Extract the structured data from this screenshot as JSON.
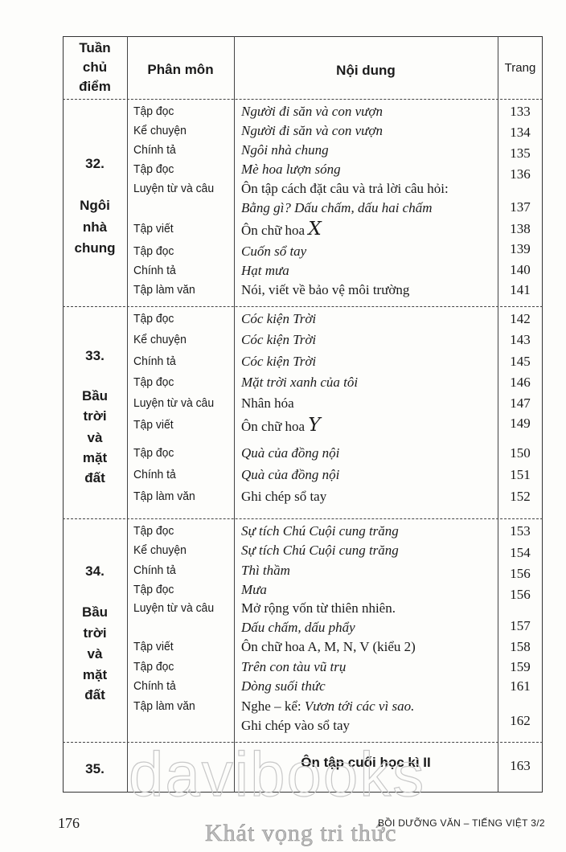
{
  "header": {
    "week": [
      "Tuần",
      "chủ",
      "điểm"
    ],
    "subject": "Phân môn",
    "content": "Nội dung",
    "page": "Trang"
  },
  "sections": [
    {
      "week_lines": [
        "32.",
        "Ngôi",
        "nhà",
        "chung"
      ],
      "rows": [
        {
          "subject": "Tập đọc",
          "content": [
            [
              {
                "t": "Người đi săn và con vượn",
                "i": true
              }
            ]
          ],
          "page": "133"
        },
        {
          "subject": "Kể chuyện",
          "content": [
            [
              {
                "t": "Người đi săn và con vượn",
                "i": true
              }
            ]
          ],
          "page": "134"
        },
        {
          "subject": "Chính tả",
          "content": [
            [
              {
                "t": "Ngôi nhà chung",
                "i": true
              }
            ]
          ],
          "page": "135"
        },
        {
          "subject": "Tập đọc",
          "content": [
            [
              {
                "t": "Mè hoa lượn sóng",
                "i": true
              }
            ]
          ],
          "page": "136"
        },
        {
          "subject": "Luyện từ và câu",
          "content": [
            [
              {
                "t": "Ôn tập cách đặt câu và trả lời câu hỏi:",
                "i": false
              }
            ],
            [
              {
                "t": "Bằng gì? Dấu chấm, dấu hai chấm",
                "i": true
              }
            ]
          ],
          "page": "137"
        },
        {
          "subject": "Tập viết",
          "content": [
            [
              {
                "t": "Ôn chữ hoa ",
                "i": false
              },
              {
                "t": "X",
                "c": true
              }
            ]
          ],
          "page": "138"
        },
        {
          "subject": "Tập đọc",
          "content": [
            [
              {
                "t": "Cuốn sổ tay",
                "i": true
              }
            ]
          ],
          "page": "139"
        },
        {
          "subject": "Chính tả",
          "content": [
            [
              {
                "t": "Hạt mưa",
                "i": true
              }
            ]
          ],
          "page": "140"
        },
        {
          "subject": "Tập làm văn",
          "content": [
            [
              {
                "t": "Nói, viết về bảo vệ môi trường",
                "i": false
              }
            ]
          ],
          "page": "141"
        }
      ]
    },
    {
      "week_lines": [
        "33.",
        "Bầu",
        "trời",
        "và",
        "mặt",
        "đất"
      ],
      "rows": [
        {
          "subject": "Tập đọc",
          "content": [
            [
              {
                "t": "Cóc kiện Trời",
                "i": true
              }
            ]
          ],
          "page": "142"
        },
        {
          "subject": "Kể chuyện",
          "content": [
            [
              {
                "t": "Cóc kiện Trời",
                "i": true
              }
            ]
          ],
          "page": "143"
        },
        {
          "subject": "Chính tả",
          "content": [
            [
              {
                "t": "Cóc kiện Trời",
                "i": true
              }
            ]
          ],
          "page": "145"
        },
        {
          "subject": "Tập đọc",
          "content": [
            [
              {
                "t": "Mặt trời xanh của tôi",
                "i": true
              }
            ]
          ],
          "page": "146"
        },
        {
          "subject": "Luyện từ và câu",
          "content": [
            [
              {
                "t": "Nhân hóa",
                "i": false
              }
            ]
          ],
          "page": "147"
        },
        {
          "subject": "Tập viết",
          "content": [
            [
              {
                "t": "Ôn chữ hoa ",
                "i": false
              },
              {
                "t": "Y",
                "c": true
              }
            ]
          ],
          "page": "149"
        },
        {
          "subject": "Tập đọc",
          "content": [
            [
              {
                "t": "Quà của đồng nội",
                "i": true
              }
            ]
          ],
          "page": "150"
        },
        {
          "subject": "Chính tả",
          "content": [
            [
              {
                "t": "Quà của đồng nội",
                "i": true
              }
            ]
          ],
          "page": "151"
        },
        {
          "subject": "Tập làm văn",
          "content": [
            [
              {
                "t": "Ghi chép sổ tay",
                "i": false
              }
            ]
          ],
          "page": "152"
        }
      ]
    },
    {
      "week_lines": [
        "34.",
        "Bầu",
        "trời",
        "và",
        "mặt",
        "đất"
      ],
      "rows": [
        {
          "subject": "Tập đọc",
          "content": [
            [
              {
                "t": "Sự tích Chú Cuội cung trăng",
                "i": true
              }
            ]
          ],
          "page": "153"
        },
        {
          "subject": "Kể chuyện",
          "content": [
            [
              {
                "t": "Sự tích Chú Cuội cung trăng",
                "i": true
              }
            ]
          ],
          "page": "154"
        },
        {
          "subject": "Chính tả",
          "content": [
            [
              {
                "t": "Thì thầm",
                "i": true
              }
            ]
          ],
          "page": "156"
        },
        {
          "subject": "Tập đọc",
          "content": [
            [
              {
                "t": "Mưa",
                "i": true
              }
            ]
          ],
          "page": "156"
        },
        {
          "subject": "Luyện từ và câu",
          "content": [
            [
              {
                "t": "Mở rộng vốn từ thiên nhiên.",
                "i": false
              }
            ],
            [
              {
                "t": "Dấu chấm, dấu phẩy",
                "i": true
              }
            ]
          ],
          "page": "157"
        },
        {
          "subject": "Tập viết",
          "content": [
            [
              {
                "t": "Ôn chữ hoa A, M, N, V (kiểu 2)",
                "i": false
              }
            ]
          ],
          "page": "158"
        },
        {
          "subject": "Tập đọc",
          "content": [
            [
              {
                "t": "Trên con tàu vũ trụ",
                "i": true
              }
            ]
          ],
          "page": "159"
        },
        {
          "subject": "Chính tả",
          "content": [
            [
              {
                "t": "Dòng suối thức",
                "i": true
              }
            ]
          ],
          "page": "161"
        },
        {
          "subject": "Tập làm văn",
          "content": [
            [
              {
                "t": "Nghe – kể: ",
                "i": false
              },
              {
                "t": "Vươn tới các vì sao.",
                "i": true
              }
            ],
            [
              {
                "t": "Ghi chép vào sổ tay",
                "i": false
              }
            ]
          ],
          "page": "162"
        }
      ]
    },
    {
      "week_lines": [
        "35."
      ],
      "bold_content": "Ôn tập cuối học kì II",
      "page": "163"
    }
  ],
  "footer": {
    "page_number": "176",
    "book_title": "BỒI DƯỠNG VĂN – TIẾNG VIỆT 3/2"
  },
  "watermark": {
    "brand": "davibooks",
    "slogan": "Khát vọng tri thức"
  }
}
